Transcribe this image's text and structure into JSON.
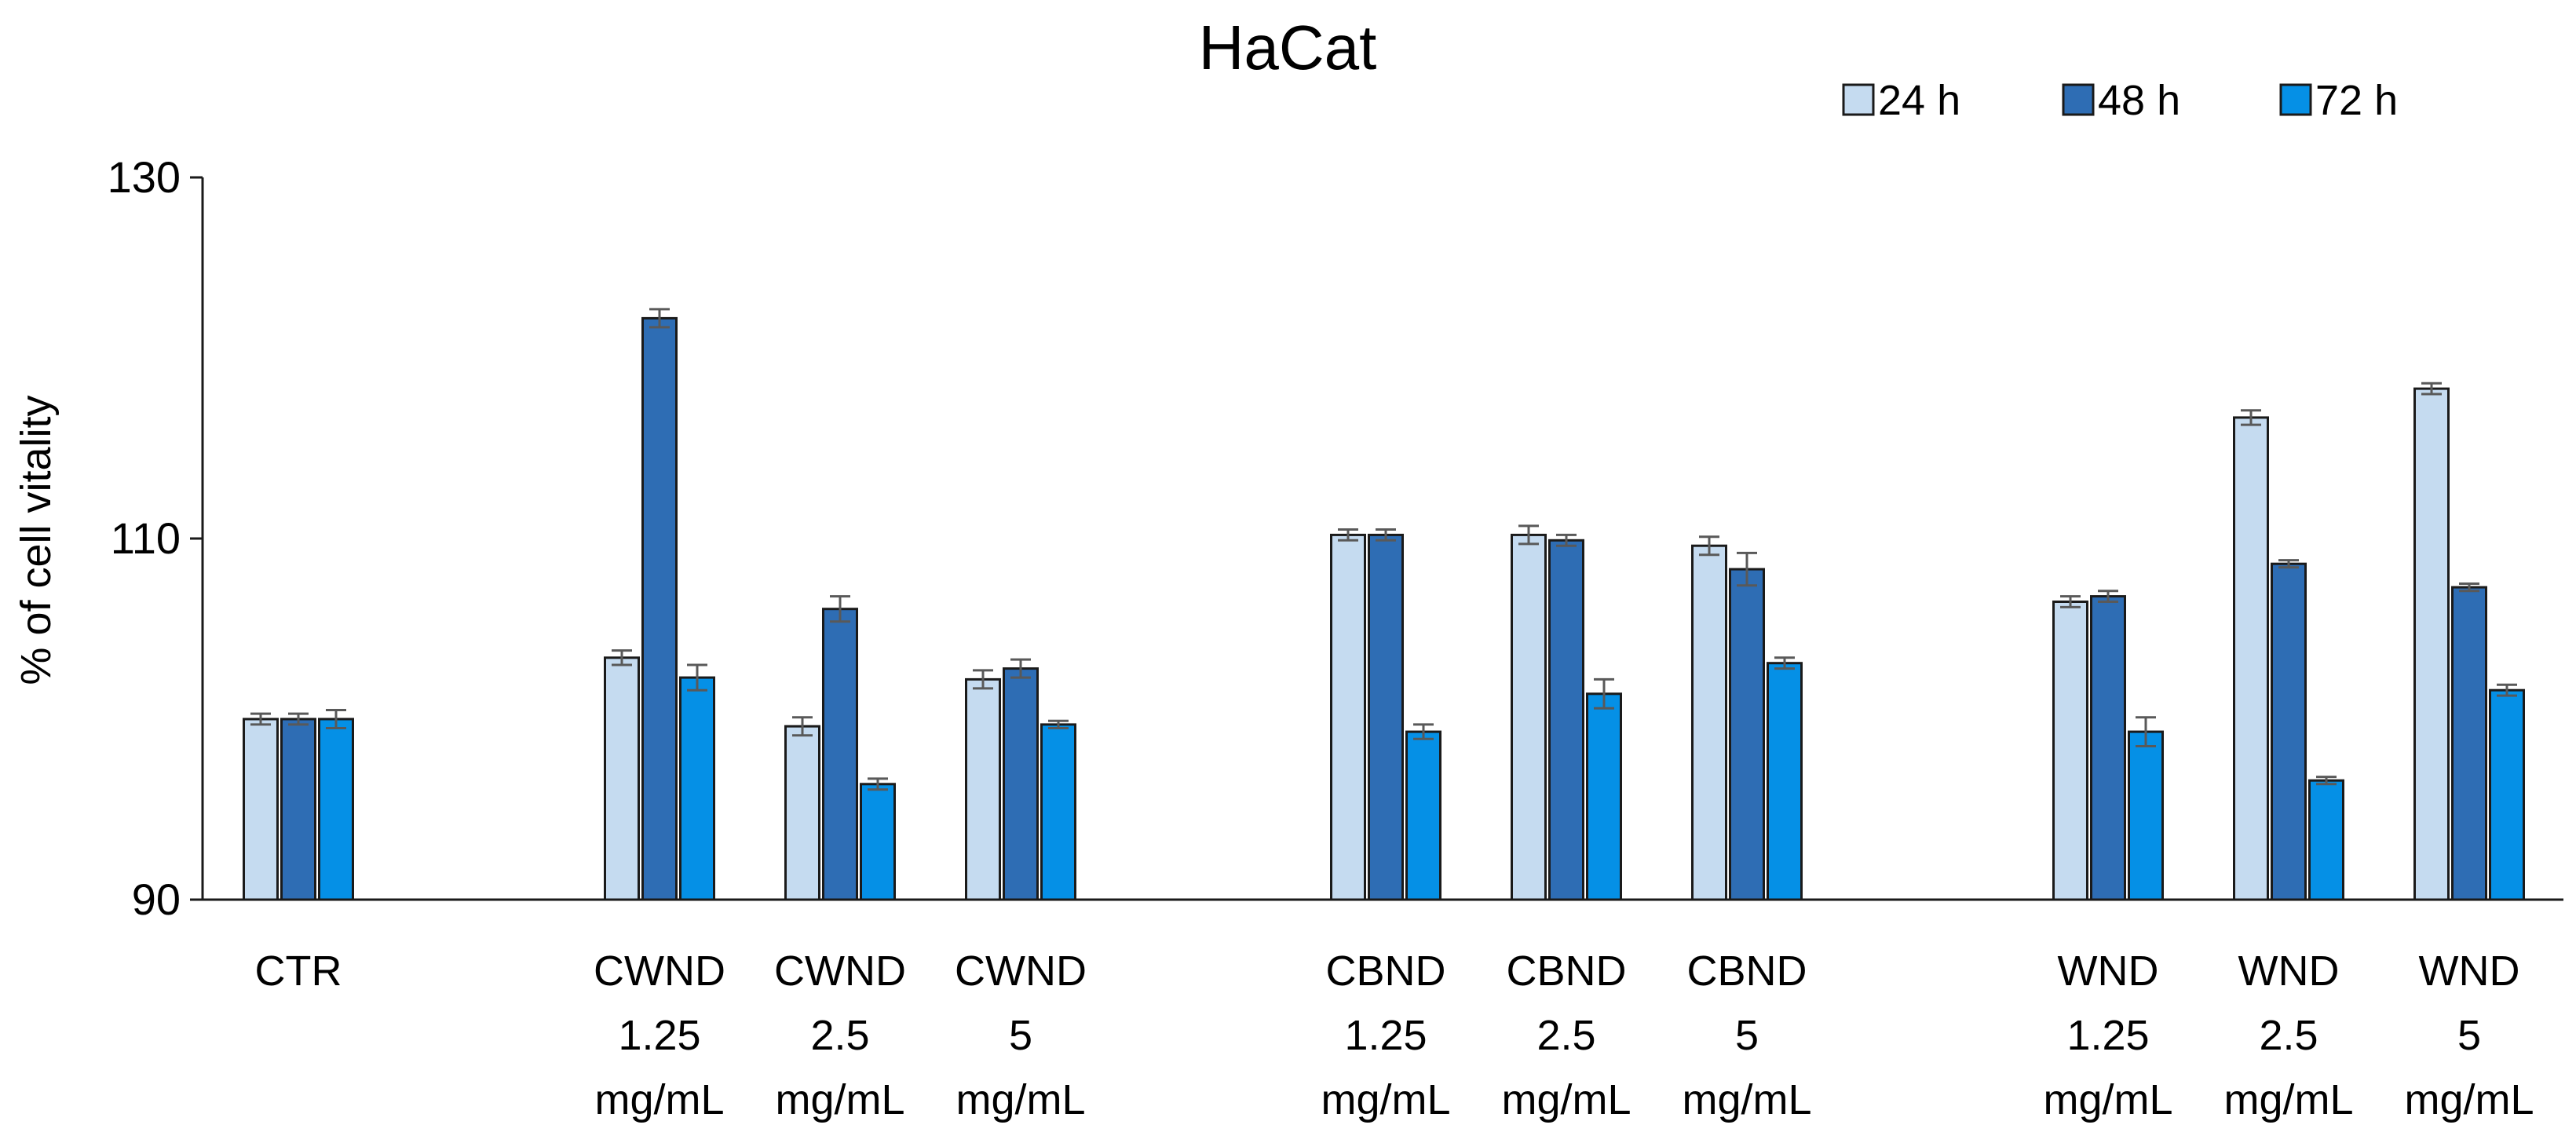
{
  "chart_data": {
    "type": "bar",
    "title": "HaCat",
    "xlabel": "",
    "ylabel": "% of cell vitality",
    "ylim": [
      90,
      130
    ],
    "yticks": [
      "90",
      "110",
      "130"
    ],
    "legend_position": "top-right",
    "categories": [
      {
        "lines": [
          "CTR"
        ]
      },
      {
        "lines": [
          "CWND",
          "1.25",
          "mg/mL"
        ]
      },
      {
        "lines": [
          "CWND",
          "2.5",
          "mg/mL"
        ]
      },
      {
        "lines": [
          "CWND",
          "5",
          "mg/mL"
        ]
      },
      {
        "lines": [
          "CBND",
          "1.25",
          "mg/mL"
        ]
      },
      {
        "lines": [
          "CBND",
          "2.5",
          "mg/mL"
        ]
      },
      {
        "lines": [
          "CBND",
          "5",
          "mg/mL"
        ]
      },
      {
        "lines": [
          "WND",
          "1.25",
          "mg/mL"
        ]
      },
      {
        "lines": [
          "WND",
          "2.5",
          "mg/mL"
        ]
      },
      {
        "lines": [
          "WND",
          "5",
          "mg/mL"
        ]
      }
    ],
    "series": [
      {
        "name": "24 h",
        "color": "#C5DBF0",
        "values": [
          100.0,
          103.4,
          99.6,
          102.2,
          110.2,
          110.2,
          109.6,
          106.5,
          116.7,
          118.3
        ],
        "errors": [
          0.3,
          0.4,
          0.5,
          0.5,
          0.3,
          0.5,
          0.5,
          0.3,
          0.4,
          0.3
        ]
      },
      {
        "name": "48 h",
        "color": "#2E6DB4",
        "values": [
          100.0,
          122.2,
          106.1,
          102.8,
          110.2,
          109.9,
          108.3,
          106.8,
          108.6,
          107.3
        ],
        "errors": [
          0.3,
          0.5,
          0.7,
          0.5,
          0.3,
          0.3,
          0.9,
          0.3,
          0.2,
          0.2
        ]
      },
      {
        "name": "72 h",
        "color": "#0590E6",
        "values": [
          100.0,
          102.3,
          96.4,
          99.7,
          99.3,
          101.4,
          103.1,
          99.3,
          96.6,
          101.6
        ],
        "errors": [
          0.5,
          0.7,
          0.3,
          0.2,
          0.4,
          0.8,
          0.3,
          0.8,
          0.2,
          0.3
        ]
      }
    ]
  }
}
